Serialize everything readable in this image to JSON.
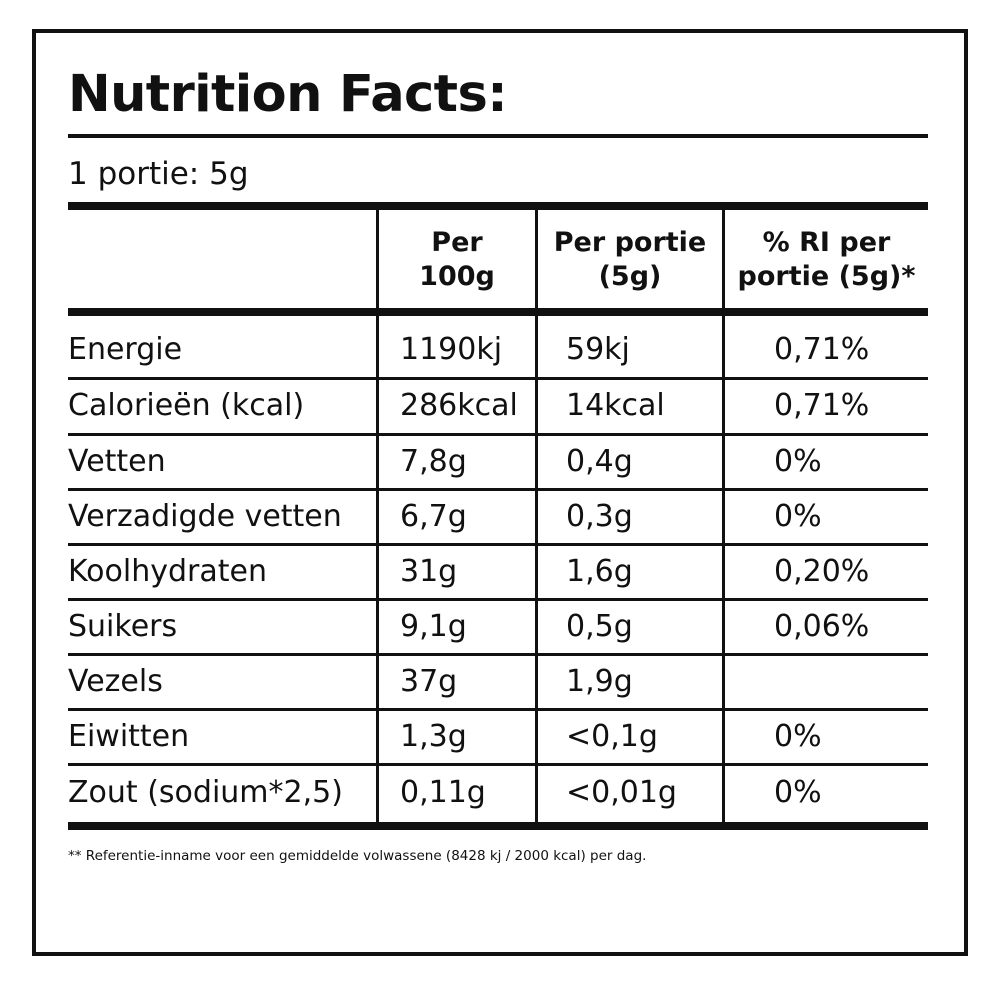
{
  "label": {
    "title": "Nutrition Facts:",
    "serving": "1 portie: 5g",
    "columns": [
      "",
      "Per 100g",
      "Per portie (5g)",
      "% RI per portie (5g)*"
    ],
    "rows": [
      {
        "name": "Energie",
        "per_100g": "1190kj",
        "per_portion": "59kj",
        "ri": "0,71%"
      },
      {
        "name": "Calorieën (kcal)",
        "per_100g": "286kcal",
        "per_portion": "14kcal",
        "ri": "0,71%"
      },
      {
        "name": "Vetten",
        "per_100g": "7,8g",
        "per_portion": "0,4g",
        "ri": "0%"
      },
      {
        "name": "Verzadigde vetten",
        "per_100g": "6,7g",
        "per_portion": "0,3g",
        "ri": "0%"
      },
      {
        "name": "Koolhydraten",
        "per_100g": "31g",
        "per_portion": "1,6g",
        "ri": "0,20%"
      },
      {
        "name": "Suikers",
        "per_100g": "9,1g",
        "per_portion": "0,5g",
        "ri": "0,06%"
      },
      {
        "name": "Vezels",
        "per_100g": "37g",
        "per_portion": "1,9g",
        "ri": ""
      },
      {
        "name": "Eiwitten",
        "per_100g": "1,3g",
        "per_portion": "<0,1g",
        "ri": "0%"
      },
      {
        "name": "Zout (sodium*2,5)",
        "per_100g": "0,11g",
        "per_portion": "<0,01g",
        "ri": "0%"
      }
    ],
    "footnote": "** Referentie-inname voor een gemiddelde volwassene (8428 kj / 2000 kcal) per dag."
  }
}
